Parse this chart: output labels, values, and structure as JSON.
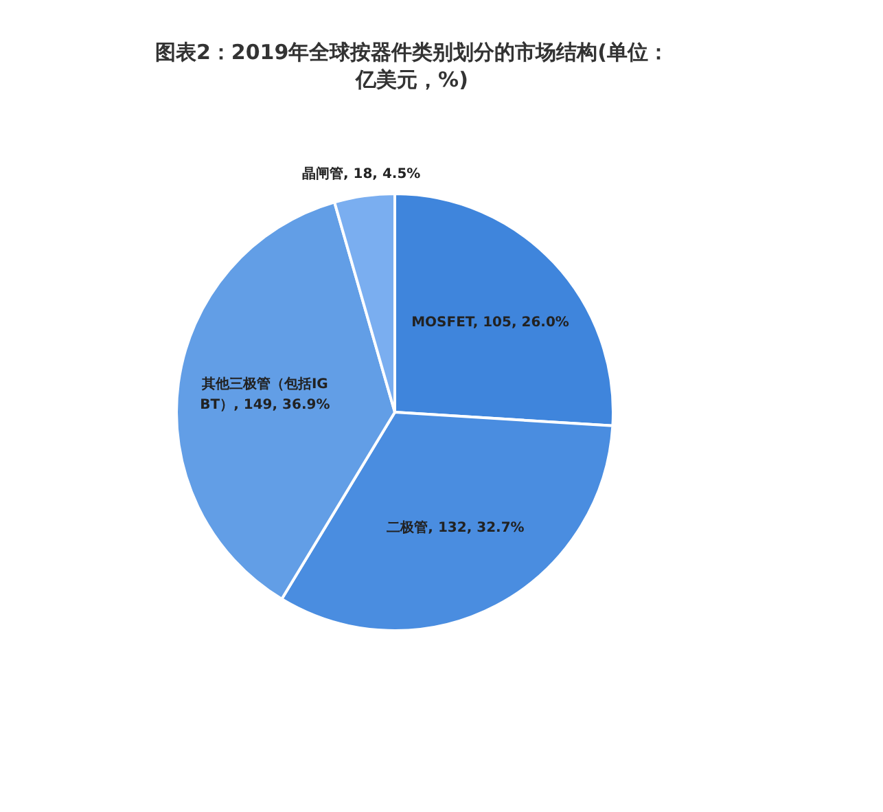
{
  "chart_data": {
    "type": "pie",
    "title": "图表2：2019年全球按器件类别划分的市场结构(单位：亿美元，%)",
    "categories": [
      "MOSFET",
      "二极管",
      "其他三极管（包括IGBT）",
      "晶闸管"
    ],
    "values": [
      105,
      132,
      149,
      18
    ],
    "value_labels": [
      ", 105, 26.0%",
      ", 132, 32.7%",
      ", 149, 36.9%",
      ", 18, 4.5%"
    ],
    "colors": [
      "#3f85dc",
      "#4a8de0",
      "#629ee6",
      "#7aaef0"
    ],
    "legend": false
  }
}
